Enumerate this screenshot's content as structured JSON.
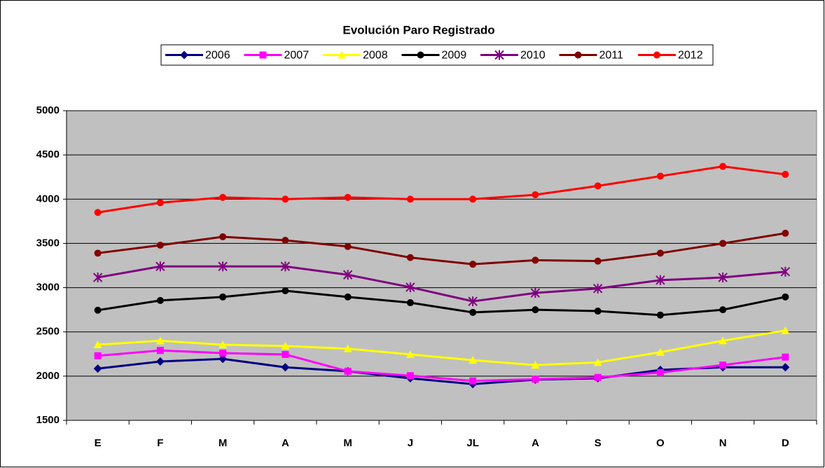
{
  "chart_data": {
    "type": "line",
    "title": "Evolución Paro Registrado",
    "categories": [
      "E",
      "F",
      "M",
      "A",
      "M",
      "J",
      "JL",
      "A",
      "S",
      "O",
      "N",
      "D"
    ],
    "ylim": [
      1500,
      5000
    ],
    "yticks": [
      1500,
      2000,
      2500,
      3000,
      3500,
      4000,
      4500,
      5000
    ],
    "grid": true,
    "legend": "top",
    "series": [
      {
        "name": "2006",
        "color": "#000080",
        "marker": "diamond",
        "values": [
          2085,
          2165,
          2195,
          2100,
          2055,
          1975,
          1910,
          1960,
          1975,
          2070,
          2100,
          2100
        ]
      },
      {
        "name": "2007",
        "color": "#ff00ff",
        "marker": "square",
        "values": [
          2230,
          2290,
          2260,
          2245,
          2055,
          2005,
          1945,
          1965,
          1985,
          2040,
          2125,
          2215
        ]
      },
      {
        "name": "2008",
        "color": "#ffff00",
        "marker": "triangle",
        "values": [
          2355,
          2400,
          2355,
          2340,
          2310,
          2245,
          2180,
          2125,
          2155,
          2270,
          2400,
          2515
        ]
      },
      {
        "name": "2009",
        "color": "#000000",
        "marker": "circle",
        "values": [
          2745,
          2855,
          2895,
          2965,
          2895,
          2830,
          2720,
          2750,
          2735,
          2690,
          2750,
          2895
        ]
      },
      {
        "name": "2010",
        "color": "#800080",
        "marker": "asterisk",
        "values": [
          3115,
          3240,
          3240,
          3240,
          3145,
          3005,
          2845,
          2940,
          2990,
          3085,
          3115,
          3180
        ]
      },
      {
        "name": "2011",
        "color": "#800000",
        "marker": "circle",
        "values": [
          3390,
          3480,
          3575,
          3535,
          3465,
          3340,
          3265,
          3310,
          3300,
          3390,
          3500,
          3615
        ]
      },
      {
        "name": "2012",
        "color": "#ff0000",
        "marker": "circle",
        "values": [
          3850,
          3960,
          4020,
          4000,
          4020,
          4000,
          4000,
          4050,
          4150,
          4260,
          4370,
          4280
        ]
      }
    ]
  }
}
